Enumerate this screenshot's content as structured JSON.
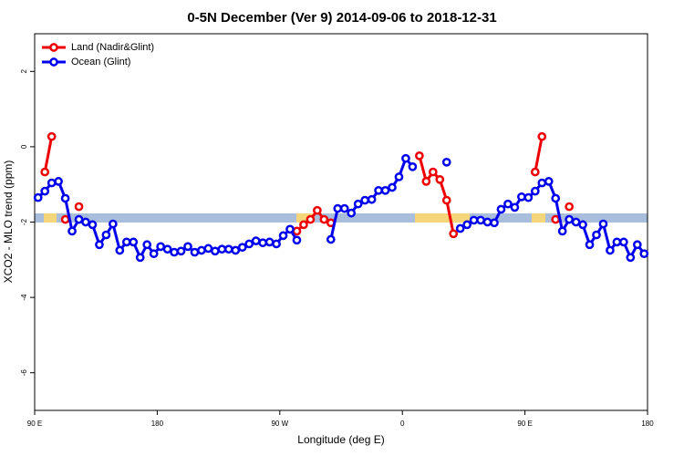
{
  "chart_data": {
    "type": "line",
    "title": "0-5N December (Ver 9)   2014-09-06 to 2018-12-31",
    "x_label": "Longitude (deg E)",
    "y_label": "XCO2 - MLO trend (ppm)",
    "xlim": [
      90,
      540
    ],
    "ylim": [
      -7,
      3
    ],
    "xticks": [
      {
        "value": 90,
        "label": "90 E"
      },
      180,
      {
        "value": 270,
        "label": "90 W"
      },
      {
        "value": 360,
        "label": "0"
      },
      {
        "value": 450,
        "label": "90 E"
      },
      {
        "value": 540,
        "label": "180"
      }
    ],
    "yticks": [
      2,
      0,
      -2,
      -4,
      -6
    ],
    "legend": "top-left",
    "x": [
      92.5,
      97.5,
      102.5,
      107.5,
      112.5,
      117.5,
      122.5,
      127.5,
      132.5,
      137.5,
      142.5,
      147.5,
      152.5,
      157.5,
      162.5,
      167.5,
      172.5,
      177.5,
      182.5,
      187.5,
      192.5,
      197.5,
      202.5,
      207.5,
      212.5,
      217.5,
      222.5,
      227.5,
      232.5,
      237.5,
      242.5,
      247.5,
      252.5,
      257.5,
      262.5,
      267.5,
      272.5,
      277.5,
      282.5,
      287.5,
      292.5,
      297.5,
      302.5,
      307.5,
      312.5,
      317.5,
      322.5,
      327.5,
      332.5,
      337.5,
      342.5,
      347.5,
      352.5,
      357.5,
      362.5,
      367.5,
      372.5,
      377.5,
      382.5,
      387.5,
      392.5,
      397.5,
      402.5,
      407.5,
      412.5,
      417.5,
      422.5,
      427.5,
      432.5,
      437.5,
      442.5,
      447.5,
      452.5,
      457.5,
      462.5,
      467.5,
      472.5,
      477.5,
      482.5,
      487.5,
      492.5,
      497.5,
      502.5,
      507.5,
      512.5,
      517.5,
      522.5,
      527.5,
      532.5,
      537.5
    ],
    "series": [
      {
        "name": "Land (Nadir&Glint)",
        "color": "#ee0000",
        "values": [
          null,
          -0.67,
          0.27,
          null,
          -1.93,
          null,
          -1.59,
          null,
          null,
          null,
          null,
          null,
          null,
          null,
          null,
          null,
          null,
          null,
          null,
          null,
          null,
          null,
          null,
          null,
          null,
          null,
          null,
          null,
          null,
          null,
          null,
          null,
          null,
          null,
          null,
          null,
          null,
          null,
          -2.24,
          -2.07,
          -1.93,
          -1.69,
          -1.93,
          -2.02,
          null,
          null,
          null,
          null,
          null,
          null,
          null,
          null,
          null,
          null,
          null,
          null,
          -0.24,
          -0.92,
          -0.67,
          -0.87,
          -1.42,
          -2.31,
          null,
          null,
          null,
          null,
          null,
          null,
          null,
          null,
          null,
          null,
          null,
          -0.67,
          0.27,
          null,
          -1.93,
          null,
          -1.59,
          null,
          null,
          null,
          null,
          null,
          null,
          null,
          null,
          null,
          null,
          null
        ]
      },
      {
        "name": "Ocean (Glint)",
        "color": "#0000ee",
        "values": [
          -1.35,
          -1.18,
          -0.96,
          -0.92,
          -1.37,
          -2.24,
          -1.93,
          -2.0,
          -2.07,
          -2.6,
          -2.34,
          -2.05,
          -2.75,
          -2.53,
          -2.53,
          -2.94,
          -2.6,
          -2.84,
          -2.65,
          -2.72,
          -2.8,
          -2.77,
          -2.65,
          -2.8,
          -2.75,
          -2.7,
          -2.77,
          -2.72,
          -2.72,
          -2.75,
          -2.67,
          -2.58,
          -2.5,
          -2.55,
          -2.53,
          -2.58,
          -2.36,
          -2.19,
          -2.48,
          null,
          null,
          null,
          null,
          -2.46,
          -1.64,
          -1.64,
          -1.76,
          -1.52,
          -1.42,
          -1.4,
          -1.16,
          -1.16,
          -1.08,
          -0.8,
          -0.31,
          -0.53,
          null,
          null,
          null,
          null,
          -0.41,
          null,
          -2.17,
          -2.07,
          -1.95,
          -1.95,
          -2.0,
          -2.02,
          -1.66,
          -1.52,
          -1.61,
          -1.33,
          -1.35,
          -1.18,
          -0.96,
          -0.92,
          -1.37,
          -2.24,
          -1.93,
          -2.0,
          -2.07,
          -2.6,
          -2.34,
          -2.05,
          -2.75,
          -2.53,
          -2.53,
          -2.94,
          -2.6,
          -2.84
        ]
      }
    ]
  }
}
